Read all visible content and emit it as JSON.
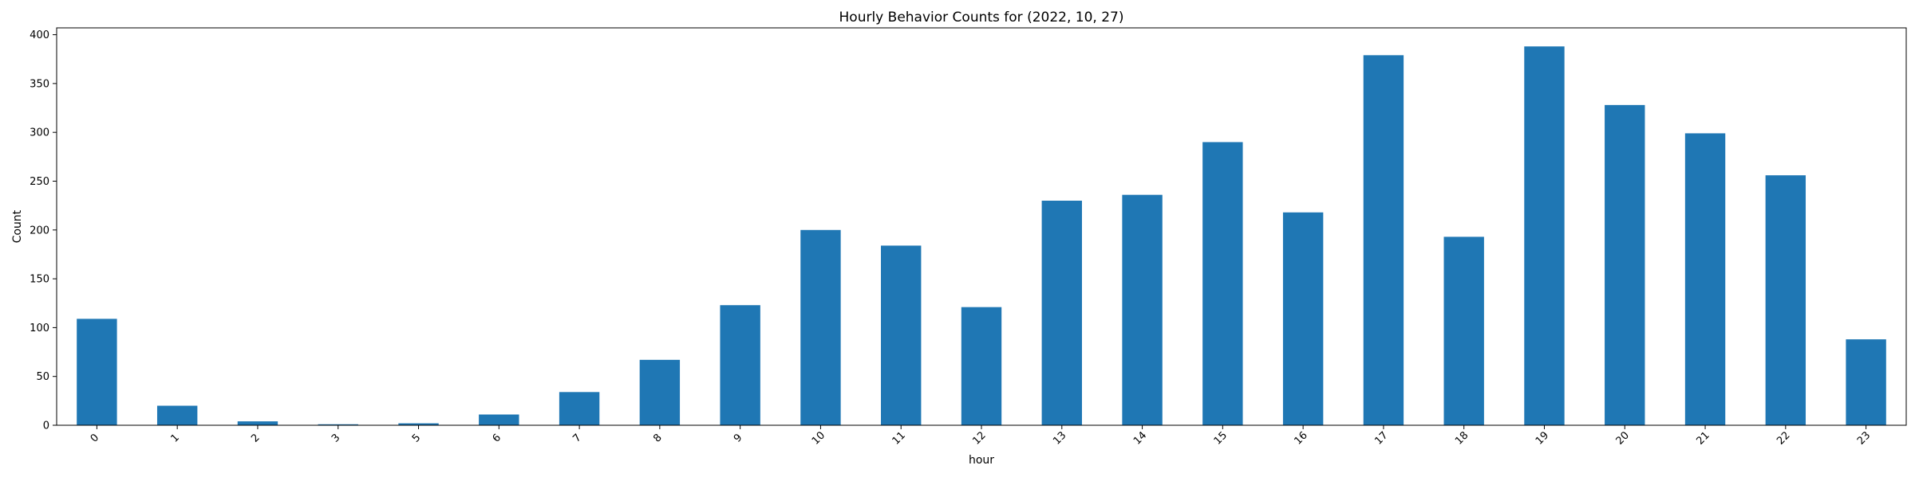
{
  "chart_data": {
    "type": "bar",
    "title": "Hourly Behavior Counts for (2022, 10, 27)",
    "xlabel": "hour",
    "ylabel": "Count",
    "categories": [
      "0",
      "1",
      "2",
      "3",
      "5",
      "6",
      "7",
      "8",
      "9",
      "10",
      "11",
      "12",
      "13",
      "14",
      "15",
      "16",
      "17",
      "18",
      "19",
      "20",
      "21",
      "22",
      "23"
    ],
    "values": [
      109,
      20,
      4,
      1,
      2,
      11,
      34,
      67,
      123,
      200,
      184,
      121,
      230,
      236,
      290,
      218,
      379,
      193,
      388,
      328,
      299,
      256,
      88
    ],
    "ylim": [
      0,
      407
    ],
    "yticks": [
      0,
      50,
      100,
      150,
      200,
      250,
      300,
      350,
      400
    ],
    "bar_color": "#1f77b4",
    "grid": false,
    "x_tick_rotation": -45
  }
}
